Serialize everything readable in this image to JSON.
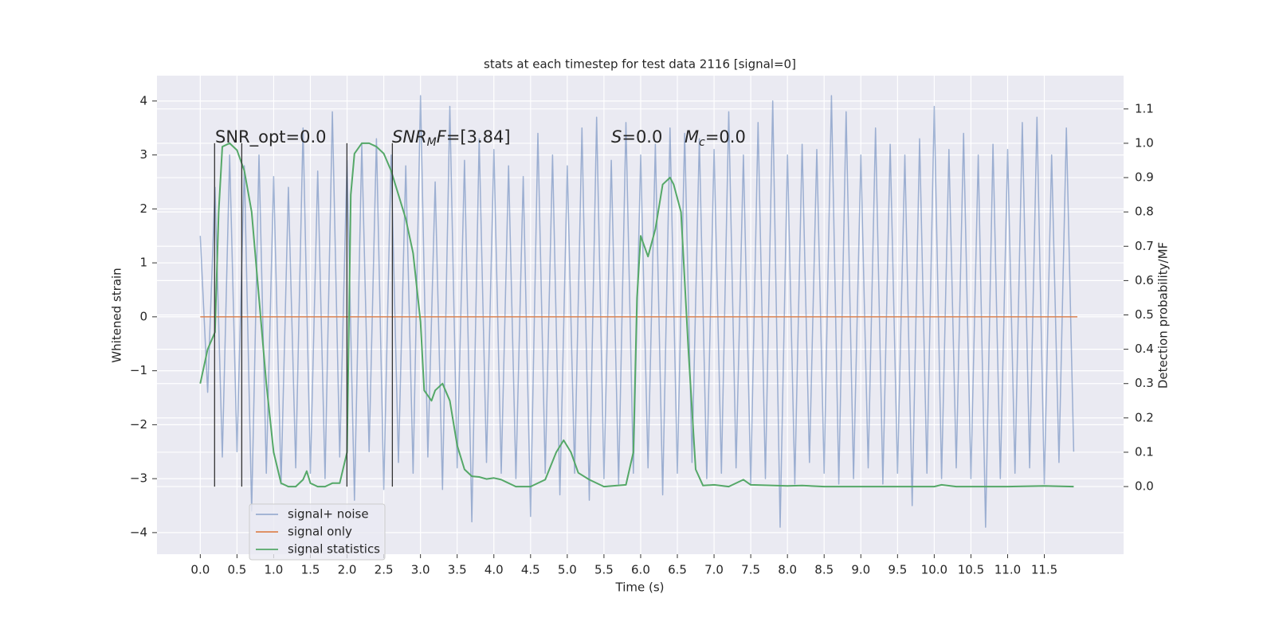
{
  "chart_data": {
    "type": "line",
    "title": "stats at each timestep for test data 2116 [signal=0]",
    "xlabel": "Time (s)",
    "ylabel": "Whitened strain",
    "y2label": "Detection probability/MF",
    "xlim": [
      -0.59,
      12.58
    ],
    "ylim": [
      -4.4,
      4.47
    ],
    "y2lim": [
      -0.197,
      1.197
    ],
    "xticks": [
      {
        "value": 0,
        "label": "0.0"
      },
      0.5,
      {
        "value": 1,
        "label": "1.0"
      },
      1.5,
      {
        "value": 2,
        "label": "2.0"
      },
      2.5,
      {
        "value": 3,
        "label": "3.0"
      },
      3.5,
      {
        "value": 4,
        "label": "4.0"
      },
      4.5,
      {
        "value": 5,
        "label": "5.0"
      },
      5.5,
      {
        "value": 6,
        "label": "6.0"
      },
      6.5,
      {
        "value": 7,
        "label": "7.0"
      },
      7.5,
      {
        "value": 8,
        "label": "8.0"
      },
      8.5,
      {
        "value": 9,
        "label": "9.0"
      },
      9.5,
      {
        "value": 10,
        "label": "10.0"
      },
      10.5,
      {
        "value": 11,
        "label": "11.0"
      },
      11.5
    ],
    "yticks": [
      {
        "value": -4,
        "label": "−4"
      },
      {
        "value": -3,
        "label": "−3"
      },
      {
        "value": -2,
        "label": "−2"
      },
      {
        "value": -1,
        "label": "−1"
      },
      0,
      1,
      2,
      3,
      4
    ],
    "y2ticks": [
      {
        "value": 0,
        "label": "0.0"
      },
      0.1,
      0.2,
      0.3,
      0.4,
      0.5,
      0.6,
      0.7,
      0.8,
      0.9,
      {
        "value": 1,
        "label": "1.0"
      },
      1.1
    ],
    "grid": true,
    "legend": "lower left",
    "series": [
      {
        "name": "signal+ noise",
        "color": "#4c72b0",
        "alpha": 0.5,
        "x": [
          0,
          0.1,
          0.2,
          0.3,
          0.4,
          0.5,
          0.6,
          0.7,
          0.8,
          0.9,
          1,
          1.1,
          1.2,
          1.3,
          1.4,
          1.5,
          1.6,
          1.7,
          1.8,
          1.9,
          2,
          2.1,
          2.2,
          2.3,
          2.4,
          2.5,
          2.6,
          2.7,
          2.8,
          2.9,
          3,
          3.1,
          3.2,
          3.3,
          3.4,
          3.5,
          3.6,
          3.7,
          3.8,
          3.9,
          4,
          4.1,
          4.2,
          4.3,
          4.4,
          4.5,
          4.6,
          4.7,
          4.8,
          4.9,
          5,
          5.1,
          5.2,
          5.3,
          5.4,
          5.5,
          5.6,
          5.7,
          5.8,
          5.9,
          6,
          6.1,
          6.2,
          6.3,
          6.4,
          6.5,
          6.6,
          6.7,
          6.8,
          6.9,
          7,
          7.1,
          7.2,
          7.3,
          7.4,
          7.5,
          7.6,
          7.7,
          7.8,
          7.9,
          8,
          8.1,
          8.2,
          8.3,
          8.4,
          8.5,
          8.6,
          8.7,
          8.8,
          8.9,
          9,
          9.1,
          9.2,
          9.3,
          9.4,
          9.5,
          9.6,
          9.7,
          9.8,
          9.9,
          10,
          10.1,
          10.2,
          10.3,
          10.4,
          10.5,
          10.6,
          10.7,
          10.8,
          10.9,
          11,
          11.1,
          11.2,
          11.3,
          11.4,
          11.5,
          11.6,
          11.7,
          11.8,
          11.9
        ],
        "values": [
          1.5,
          -1.4,
          2.4,
          -2.6,
          3.0,
          -2.5,
          2.8,
          -3.6,
          3.0,
          -2.9,
          2.6,
          -3.1,
          2.4,
          -2.8,
          3.5,
          -2.9,
          2.7,
          -3.0,
          3.8,
          -2.6,
          2.9,
          -3.4,
          3.2,
          -2.5,
          3.3,
          -3.2,
          3.0,
          -2.7,
          2.8,
          -2.9,
          4.1,
          -2.6,
          2.5,
          -3.2,
          3.9,
          -2.8,
          2.9,
          -3.8,
          3.3,
          -2.7,
          3.1,
          -2.9,
          2.8,
          -3.0,
          2.6,
          -3.7,
          3.4,
          -2.9,
          3.0,
          -3.3,
          2.8,
          -2.9,
          3.5,
          -3.4,
          3.7,
          -3.0,
          2.9,
          -3.1,
          3.6,
          -2.9,
          3.0,
          -2.8,
          3.2,
          -3.3,
          3.5,
          -2.9,
          3.4,
          -2.7,
          3.3,
          -3.0,
          3.1,
          -2.9,
          3.8,
          -2.8,
          3.0,
          -3.1,
          3.6,
          -3.0,
          4.0,
          -3.9,
          3.0,
          -3.1,
          3.2,
          -2.7,
          3.1,
          -2.9,
          4.1,
          -3.1,
          3.8,
          -3.0,
          3.0,
          -2.8,
          3.5,
          -3.1,
          3.2,
          -2.9,
          3.0,
          -3.5,
          3.3,
          -2.9,
          3.9,
          -3.0,
          3.1,
          -2.8,
          3.4,
          -3.0,
          3.0,
          -3.9,
          3.2,
          -3.0,
          3.1,
          -2.9,
          3.6,
          -2.8,
          3.7,
          -3.1,
          3.0,
          -2.7,
          3.5,
          -2.5
        ]
      },
      {
        "name": "signal only",
        "color": "#dd8452",
        "x": [
          0,
          11.95
        ],
        "values": [
          0,
          0
        ]
      },
      {
        "name": "signal statistics",
        "color": "#55a868",
        "axis": "y2",
        "x": [
          0,
          0.1,
          0.2,
          0.25,
          0.3,
          0.4,
          0.5,
          0.6,
          0.7,
          0.8,
          0.9,
          1,
          1.1,
          1.2,
          1.3,
          1.4,
          1.45,
          1.5,
          1.6,
          1.7,
          1.8,
          1.9,
          2,
          2.05,
          2.1,
          2.2,
          2.3,
          2.4,
          2.5,
          2.6,
          2.7,
          2.8,
          2.9,
          3,
          3.05,
          3.15,
          3.2,
          3.3,
          3.4,
          3.5,
          3.6,
          3.7,
          3.8,
          3.9,
          4,
          4.1,
          4.3,
          4.5,
          4.7,
          4.85,
          4.95,
          5.05,
          5.15,
          5.3,
          5.5,
          5.8,
          5.9,
          5.95,
          6,
          6.1,
          6.2,
          6.3,
          6.4,
          6.45,
          6.55,
          6.65,
          6.75,
          6.85,
          7,
          7.2,
          7.4,
          7.5,
          8,
          8.2,
          8.5,
          10,
          10.1,
          10.3,
          11,
          11.5,
          11.9
        ],
        "values": [
          0.3,
          0.4,
          0.45,
          0.8,
          0.99,
          1.0,
          0.98,
          0.92,
          0.8,
          0.55,
          0.3,
          0.1,
          0.01,
          0.0,
          0.0,
          0.02,
          0.045,
          0.01,
          0.0,
          0.0,
          0.01,
          0.01,
          0.1,
          0.85,
          0.97,
          1.0,
          1.0,
          0.99,
          0.97,
          0.92,
          0.85,
          0.78,
          0.68,
          0.48,
          0.28,
          0.25,
          0.28,
          0.3,
          0.25,
          0.12,
          0.05,
          0.03,
          0.028,
          0.022,
          0.025,
          0.02,
          0.0,
          0.0,
          0.02,
          0.1,
          0.135,
          0.1,
          0.04,
          0.02,
          0.0,
          0.005,
          0.1,
          0.55,
          0.73,
          0.67,
          0.75,
          0.88,
          0.9,
          0.88,
          0.8,
          0.4,
          0.05,
          0.003,
          0.005,
          0.0,
          0.02,
          0.005,
          0.002,
          0.003,
          0.0,
          0.0,
          0.005,
          0.0,
          0.0,
          0.002,
          0.0
        ]
      }
    ],
    "vlines": {
      "x": [
        0.195,
        0.565,
        1.998,
        2.617
      ],
      "y2": [
        0,
        1
      ],
      "color": "#333333"
    },
    "annotations": [
      [
        {
          "t": "SNR_opt=0.0"
        }
      ],
      [
        {
          "t": "SNR",
          "italic": true
        },
        {
          "t": "M",
          "italic": true,
          "sub": true
        },
        {
          "t": "F",
          "italic": true
        },
        {
          "t": "=[3.84]"
        }
      ],
      [
        {
          "t": "S",
          "italic": true
        },
        {
          "t": "=0.0"
        }
      ],
      [
        {
          "t": "M",
          "italic": true
        },
        {
          "t": "c",
          "italic": true,
          "sub": true
        },
        {
          "t": "=0.0"
        }
      ]
    ]
  }
}
